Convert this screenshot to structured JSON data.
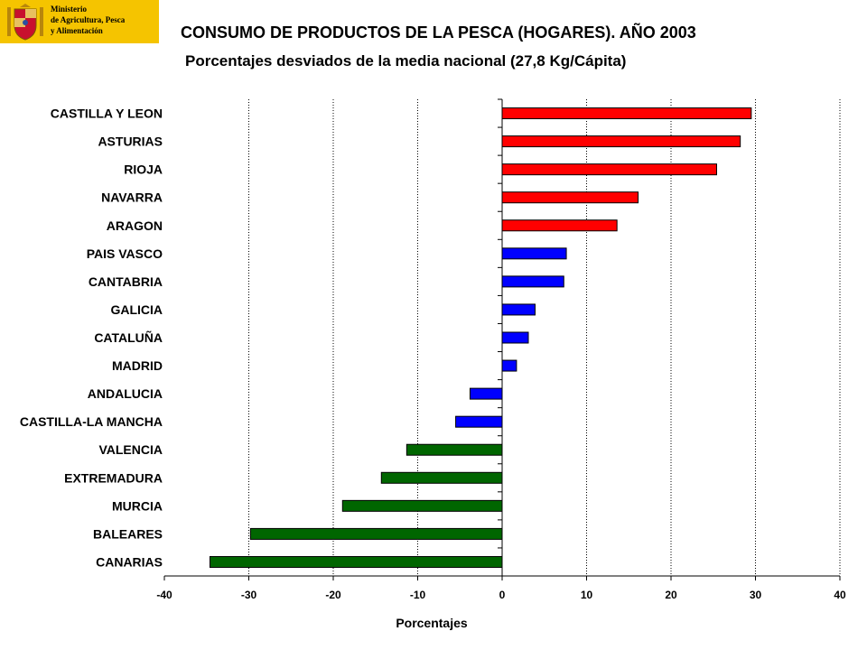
{
  "header": {
    "logo_lines": [
      "Ministerio",
      "de Agricultura, Pesca",
      "y Alimentación"
    ],
    "logo_icon": "coat-of-arms-icon",
    "logo_color": "#f5c400"
  },
  "chart_data": {
    "type": "bar",
    "orientation": "horizontal",
    "title": "CONSUMO DE PRODUCTOS DE LA PESCA (HOGARES). AÑO 2003",
    "subtitle": "Porcentajes desviados de la media nacional (27,8 Kg/Cápita)",
    "xlabel": "Porcentajes",
    "ylabel": "",
    "xlim": [
      -40,
      40
    ],
    "xticks": [
      -40,
      -30,
      -20,
      -10,
      0,
      10,
      20,
      30,
      40
    ],
    "grid": "vertical-dotted",
    "categories": [
      "CASTILLA Y LEON",
      "ASTURIAS",
      "RIOJA",
      "NAVARRA",
      "ARAGON",
      "PAIS VASCO",
      "CANTABRIA",
      "GALICIA",
      "CATALUÑA",
      "MADRID",
      "ANDALUCIA",
      "CASTILLA-LA MANCHA",
      "VALENCIA",
      "EXTREMADURA",
      "MURCIA",
      "BALEARES",
      "CANARIAS"
    ],
    "values": [
      29.5,
      28.2,
      25.4,
      16.1,
      13.6,
      7.6,
      7.3,
      3.9,
      3.1,
      1.7,
      -3.8,
      -5.5,
      -11.3,
      -14.3,
      -18.9,
      -29.8,
      -34.6
    ],
    "colors": [
      "#ff0000",
      "#ff0000",
      "#ff0000",
      "#ff0000",
      "#ff0000",
      "#0000ff",
      "#0000ff",
      "#0000ff",
      "#0000ff",
      "#0000ff",
      "#0000ff",
      "#0000ff",
      "#006600",
      "#006600",
      "#006600",
      "#006600",
      "#006600"
    ]
  }
}
